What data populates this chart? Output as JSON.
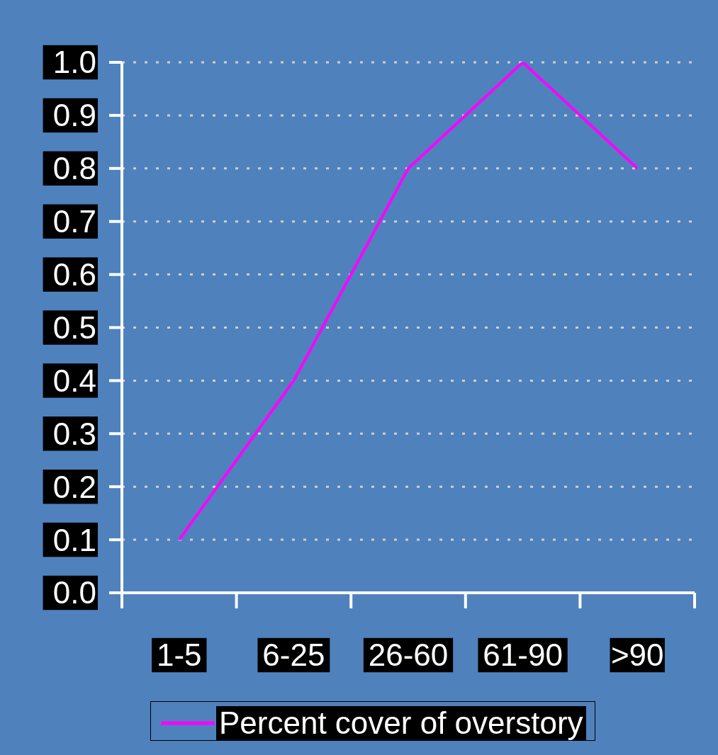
{
  "chart_data": {
    "type": "line",
    "categories": [
      "1-5",
      "6-25",
      "26-60",
      "61-90",
      ">90"
    ],
    "series": [
      {
        "name": "Percent cover of overstory",
        "color": "#ff00ff",
        "values": [
          0.1,
          0.4,
          0.8,
          1.0,
          0.8
        ]
      }
    ],
    "ylim": [
      0,
      1
    ],
    "yticks": [
      {
        "value": 0,
        "label": "0.0"
      },
      {
        "value": 0.1,
        "label": "0.1"
      },
      {
        "value": 0.2,
        "label": "0.2"
      },
      {
        "value": 0.3,
        "label": "0.3"
      },
      {
        "value": 0.4,
        "label": "0.4"
      },
      {
        "value": 0.5,
        "label": "0.5"
      },
      {
        "value": 0.6,
        "label": "0.6"
      },
      {
        "value": 0.7,
        "label": "0.7"
      },
      {
        "value": 0.8,
        "label": "0.8"
      },
      {
        "value": 0.9,
        "label": "0.9"
      },
      {
        "value": 1,
        "label": "1.0"
      }
    ],
    "grid": "y",
    "legend": "bottom",
    "marker": "none",
    "line_style": "solid"
  }
}
